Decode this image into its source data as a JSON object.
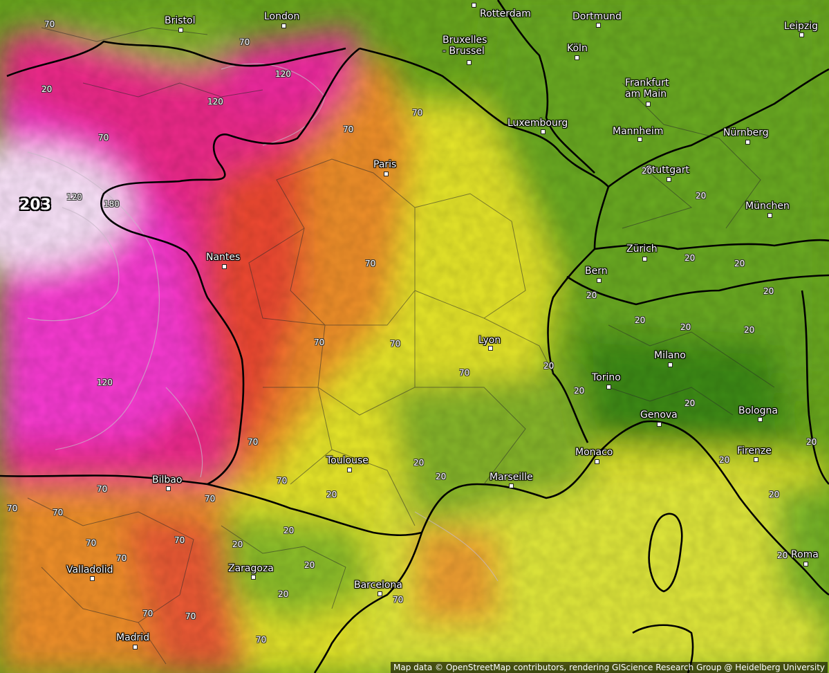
{
  "map": {
    "max_label": "203",
    "attribution": "Map data © OpenStreetMap contributors, rendering GIScience Research Group @ Heidelberg University",
    "colors": {
      "sea_land_green": "#6aa81e",
      "dark_green": "#3f8d17",
      "yellow": "#ecec2a",
      "orange": "#f08a2a",
      "red": "#ee3a3a",
      "magenta": "#ee2a9a",
      "pink": "#ff4ad6",
      "white": "#fbe9fb"
    },
    "cities": [
      {
        "name": "Bristol"
      },
      {
        "name": "London"
      },
      {
        "name": "Rotterdam"
      },
      {
        "name": "Dortmund"
      },
      {
        "name": "Leipzig"
      },
      {
        "name": "Bruxelles\n- Brussel"
      },
      {
        "name": "Köln"
      },
      {
        "name": "Frankfurt\nam Main"
      },
      {
        "name": "Luxembourg"
      },
      {
        "name": "Mannheim"
      },
      {
        "name": "Nürnberg"
      },
      {
        "name": "Paris"
      },
      {
        "name": "Stuttgart"
      },
      {
        "name": "München"
      },
      {
        "name": "Nantes"
      },
      {
        "name": "Zürich"
      },
      {
        "name": "Bern"
      },
      {
        "name": "Lyon"
      },
      {
        "name": "Milano"
      },
      {
        "name": "Torino"
      },
      {
        "name": "Genova"
      },
      {
        "name": "Bologna"
      },
      {
        "name": "Monaco"
      },
      {
        "name": "Firenze"
      },
      {
        "name": "Toulouse"
      },
      {
        "name": "Marseille"
      },
      {
        "name": "Bilbao"
      },
      {
        "name": "Valladolid"
      },
      {
        "name": "Zaragoza"
      },
      {
        "name": "Barcelona"
      },
      {
        "name": "Madrid"
      },
      {
        "name": "Roma"
      }
    ],
    "isoline_labels": [
      "70",
      "20",
      "70",
      "120",
      "120",
      "70",
      "70",
      "70",
      "120",
      "180",
      "70",
      "70",
      "70",
      "70",
      "120",
      "70",
      "70",
      "70",
      "20",
      "20",
      "20",
      "20",
      "20",
      "20",
      "20",
      "20",
      "20",
      "20",
      "20",
      "20",
      "20",
      "20",
      "20",
      "20",
      "70",
      "70",
      "70",
      "70",
      "70",
      "70",
      "70",
      "70",
      "70",
      "20",
      "20",
      "20",
      "20",
      "70",
      "20",
      "20",
      "20"
    ]
  }
}
